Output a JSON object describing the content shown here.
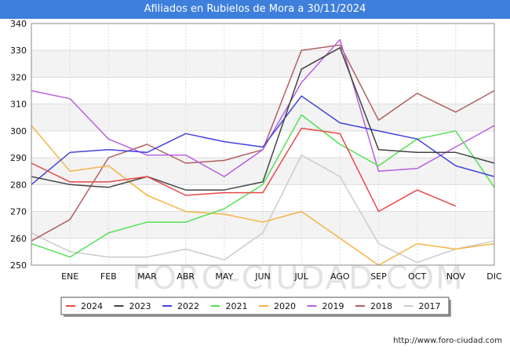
{
  "header": {
    "title": "Afiliados en Rubielos de Mora a 30/11/2024"
  },
  "footer": {
    "url": "http://www.foro-ciudad.com"
  },
  "watermark": "FORO-CIUDAD.COM",
  "chart_data": {
    "type": "line",
    "title": "Afiliados en Rubielos de Mora a 30/11/2024",
    "xlabel": "",
    "ylabel": "",
    "ylim": [
      250,
      340
    ],
    "yticks": [
      250,
      260,
      270,
      280,
      290,
      300,
      310,
      320,
      330,
      340
    ],
    "grid": true,
    "legend_position": "bottom",
    "categories": [
      "DIC",
      "ENE",
      "FEB",
      "MAR",
      "ABR",
      "MAY",
      "JUN",
      "JUL",
      "AGO",
      "SEP",
      "OCT",
      "NOV",
      "DIC"
    ],
    "x_tick_labels": [
      "ENE",
      "FEB",
      "MAR",
      "ABR",
      "MAY",
      "JUN",
      "JUL",
      "AGO",
      "SEP",
      "OCT",
      "NOV",
      "DIC"
    ],
    "series": [
      {
        "name": "2024",
        "color": "#e84848",
        "values": [
          288,
          281,
          281,
          283,
          276,
          277,
          277,
          301,
          299,
          270,
          278,
          272,
          null
        ]
      },
      {
        "name": "2023",
        "color": "#444444",
        "values": [
          283,
          280,
          279,
          283,
          278,
          278,
          281,
          323,
          331,
          293,
          292,
          292,
          288
        ]
      },
      {
        "name": "2022",
        "color": "#4444dd",
        "values": [
          280,
          292,
          293,
          292,
          299,
          296,
          294,
          313,
          303,
          300,
          297,
          287,
          283
        ]
      },
      {
        "name": "2021",
        "color": "#55e055",
        "values": [
          258,
          253,
          262,
          266,
          266,
          271,
          280,
          306,
          295,
          287,
          297,
          300,
          279
        ]
      },
      {
        "name": "2020",
        "color": "#f5b445",
        "values": [
          302,
          285,
          287,
          276,
          270,
          269,
          266,
          270,
          260,
          250,
          258,
          256,
          258
        ]
      },
      {
        "name": "2019",
        "color": "#b860e0",
        "values": [
          315,
          312,
          297,
          291,
          291,
          283,
          293,
          318,
          334,
          285,
          286,
          294,
          302
        ]
      },
      {
        "name": "2018",
        "color": "#b06060",
        "values": [
          259,
          267,
          290,
          295,
          288,
          289,
          293,
          330,
          332,
          304,
          314,
          307,
          315
        ]
      },
      {
        "name": "2017",
        "color": "#cccccc",
        "values": [
          262,
          255,
          253,
          253,
          256,
          252,
          262,
          291,
          283,
          258,
          251,
          256,
          259
        ]
      }
    ]
  }
}
